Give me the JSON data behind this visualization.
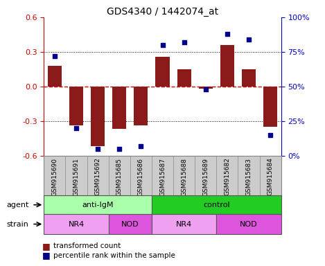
{
  "title": "GDS4340 / 1442074_at",
  "samples": [
    "GSM915690",
    "GSM915691",
    "GSM915692",
    "GSM915685",
    "GSM915686",
    "GSM915687",
    "GSM915688",
    "GSM915689",
    "GSM915682",
    "GSM915683",
    "GSM915684"
  ],
  "red_bars": [
    0.18,
    -0.34,
    -0.52,
    -0.37,
    -0.34,
    0.26,
    0.15,
    -0.02,
    0.36,
    0.15,
    -0.35
  ],
  "blue_dots_pct": [
    72,
    20,
    5,
    5,
    7,
    80,
    82,
    48,
    88,
    84,
    15
  ],
  "ylim_left": [
    -0.6,
    0.6
  ],
  "ylim_right": [
    0,
    100
  ],
  "yticks_left": [
    -0.6,
    -0.3,
    0.0,
    0.3,
    0.6
  ],
  "yticks_right": [
    0,
    25,
    50,
    75,
    100
  ],
  "ytick_labels_right": [
    "0%",
    "25%",
    "50%",
    "75%",
    "100%"
  ],
  "bar_color": "#8B1A1A",
  "dot_color": "#00008B",
  "zero_line_color": "#CC0000",
  "grid_color": "#000000",
  "agent_groups": [
    {
      "label": "anti-IgM",
      "start": 0,
      "end": 5,
      "color": "#AAFFAA"
    },
    {
      "label": "control",
      "start": 5,
      "end": 11,
      "color": "#22CC22"
    }
  ],
  "strain_groups": [
    {
      "label": "NR4",
      "start": 0,
      "end": 3,
      "color": "#F0A0F0"
    },
    {
      "label": "NOD",
      "start": 3,
      "end": 5,
      "color": "#DD55DD"
    },
    {
      "label": "NR4",
      "start": 5,
      "end": 8,
      "color": "#F0A0F0"
    },
    {
      "label": "NOD",
      "start": 8,
      "end": 11,
      "color": "#DD55DD"
    }
  ],
  "legend_red": "transformed count",
  "legend_blue": "percentile rank within the sample",
  "xlabel_agent": "agent",
  "xlabel_strain": "strain",
  "sample_bg_color": "#CCCCCC",
  "fig_bg": "#FFFFFF"
}
